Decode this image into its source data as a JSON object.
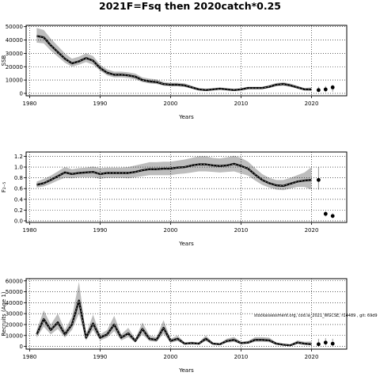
{
  "title": "2021F=Fsq then 2020catch*0.25",
  "credit": "stockassessment.org, cod.ia_2021_WGCSE, r14489 , git: 69d9",
  "chart_data": [
    {
      "type": "line",
      "ylabel": "SSB",
      "xlabel": "Years",
      "xlim": [
        1979.5,
        2025.0
      ],
      "ylim": [
        -1800,
        51000
      ],
      "xticks": [
        1980,
        1990,
        2000,
        2010,
        2020
      ],
      "yticks": [
        0,
        10000,
        20000,
        30000,
        40000,
        50000
      ],
      "ytick_labels": [
        "0",
        "10000",
        "20000",
        "30000",
        "40000",
        "50000"
      ],
      "grid": true,
      "x": [
        1981,
        1982,
        1983,
        1984,
        1985,
        1986,
        1987,
        1988,
        1989,
        1990,
        1991,
        1992,
        1993,
        1994,
        1995,
        1996,
        1997,
        1998,
        1999,
        2000,
        2001,
        2002,
        2003,
        2004,
        2005,
        2006,
        2007,
        2008,
        2009,
        2010,
        2011,
        2012,
        2013,
        2014,
        2015,
        2016,
        2017,
        2018,
        2019,
        2020
      ],
      "estimate": [
        43000,
        42000,
        36000,
        31000,
        26000,
        22500,
        24000,
        26500,
        24500,
        19000,
        15500,
        14000,
        14000,
        13500,
        12500,
        10000,
        9000,
        8500,
        7000,
        6500,
        6500,
        6000,
        4500,
        3000,
        2500,
        3000,
        3500,
        3000,
        2500,
        3000,
        4000,
        4000,
        4000,
        5000,
        6500,
        7000,
        6000,
        4500,
        3000,
        3000
      ],
      "lower": [
        38000,
        37500,
        32000,
        27500,
        23000,
        20000,
        21500,
        23500,
        21500,
        17000,
        13500,
        12000,
        12000,
        11500,
        10500,
        8500,
        7500,
        7000,
        5800,
        5300,
        5300,
        4800,
        3500,
        2200,
        1800,
        2200,
        2700,
        2300,
        1900,
        2300,
        3100,
        3100,
        3200,
        4000,
        5400,
        5800,
        4900,
        3500,
        2200,
        1800
      ],
      "upper": [
        49000,
        47500,
        41000,
        35500,
        30000,
        26000,
        27500,
        30000,
        28000,
        21500,
        18000,
        16300,
        16300,
        15800,
        14800,
        12000,
        11000,
        10500,
        8600,
        8000,
        8000,
        7500,
        5800,
        4000,
        3400,
        3900,
        4500,
        3900,
        3300,
        3800,
        5000,
        5000,
        5000,
        6200,
        7800,
        8400,
        7300,
        5700,
        4000,
        4500
      ],
      "forecast_x": [
        2021,
        2022,
        2023
      ],
      "forecast": [
        2500,
        3000,
        4500
      ],
      "forecast_lower": [
        1200,
        1000,
        1300
      ],
      "forecast_upper": [
        5000,
        5500,
        6500
      ]
    },
    {
      "type": "line",
      "ylabel": "F₂₋₅",
      "xlabel": "Years",
      "xlim": [
        1979.5,
        2025.0
      ],
      "ylim": [
        -0.03,
        1.28
      ],
      "xticks": [
        1980,
        1990,
        2000,
        2010,
        2020
      ],
      "yticks": [
        0.0,
        0.2,
        0.4,
        0.6,
        0.8,
        1.0,
        1.2
      ],
      "ytick_labels": [
        "0.0",
        "0.2",
        "0.4",
        "0.6",
        "0.8",
        "1.0",
        "1.2"
      ],
      "grid": true,
      "x": [
        1981,
        1982,
        1983,
        1984,
        1985,
        1986,
        1987,
        1988,
        1989,
        1990,
        1991,
        1992,
        1993,
        1994,
        1995,
        1996,
        1997,
        1998,
        1999,
        2000,
        2001,
        2002,
        2003,
        2004,
        2005,
        2006,
        2007,
        2008,
        2009,
        2010,
        2011,
        2012,
        2013,
        2014,
        2015,
        2016,
        2017,
        2018,
        2019,
        2020
      ],
      "estimate": [
        0.67,
        0.7,
        0.76,
        0.83,
        0.9,
        0.87,
        0.89,
        0.9,
        0.91,
        0.87,
        0.89,
        0.89,
        0.89,
        0.89,
        0.91,
        0.94,
        0.96,
        0.96,
        0.97,
        0.97,
        0.99,
        1.0,
        1.03,
        1.05,
        1.05,
        1.03,
        1.02,
        1.03,
        1.06,
        1.02,
        0.97,
        0.86,
        0.76,
        0.7,
        0.66,
        0.65,
        0.69,
        0.73,
        0.75,
        0.76
      ],
      "lower": [
        0.62,
        0.64,
        0.69,
        0.75,
        0.8,
        0.79,
        0.81,
        0.81,
        0.81,
        0.78,
        0.8,
        0.8,
        0.8,
        0.79,
        0.81,
        0.83,
        0.85,
        0.85,
        0.85,
        0.85,
        0.87,
        0.88,
        0.9,
        0.92,
        0.92,
        0.91,
        0.9,
        0.91,
        0.92,
        0.88,
        0.84,
        0.75,
        0.67,
        0.62,
        0.58,
        0.57,
        0.6,
        0.63,
        0.63,
        0.58
      ],
      "upper": [
        0.73,
        0.78,
        0.84,
        0.92,
        1.0,
        0.96,
        0.98,
        0.99,
        1.01,
        0.98,
        0.99,
        0.99,
        0.99,
        1.0,
        1.03,
        1.06,
        1.09,
        1.09,
        1.1,
        1.1,
        1.12,
        1.14,
        1.17,
        1.2,
        1.2,
        1.17,
        1.16,
        1.18,
        1.21,
        1.17,
        1.1,
        0.98,
        0.87,
        0.8,
        0.76,
        0.76,
        0.8,
        0.85,
        0.9,
        1.0
      ],
      "forecast_x": [
        2021,
        2022,
        2023
      ],
      "forecast": [
        0.76,
        0.13,
        0.09
      ],
      "forecast_lower": [
        0.58,
        0.08,
        0.05
      ],
      "forecast_upper": [
        1.0,
        0.18,
        0.14
      ]
    },
    {
      "type": "line",
      "ylabel": "Recruits (Age 1)",
      "xlabel": "Years",
      "xlim": [
        1979.5,
        2025.0
      ],
      "ylim": [
        -2500,
        62000
      ],
      "xticks": [
        1980,
        1990,
        2000,
        2010,
        2020
      ],
      "yticks": [
        0,
        10000,
        20000,
        30000,
        40000,
        50000,
        60000
      ],
      "ytick_labels": [
        "0",
        "10000",
        "20000",
        "30000",
        "40000",
        "50000",
        "60000"
      ],
      "grid": true,
      "x": [
        1981,
        1982,
        1983,
        1984,
        1985,
        1986,
        1987,
        1988,
        1989,
        1990,
        1991,
        1992,
        1993,
        1994,
        1995,
        1996,
        1997,
        1998,
        1999,
        2000,
        2001,
        2002,
        2003,
        2004,
        2005,
        2006,
        2007,
        2008,
        2009,
        2010,
        2011,
        2012,
        2013,
        2014,
        2015,
        2016,
        2017,
        2018,
        2019,
        2020
      ],
      "estimate": [
        11000,
        25000,
        15000,
        22000,
        11000,
        20000,
        42000,
        8000,
        21000,
        8000,
        11000,
        20000,
        8000,
        12000,
        5000,
        16000,
        7000,
        6000,
        17000,
        5000,
        7000,
        2500,
        3000,
        2500,
        7000,
        2500,
        2000,
        5000,
        6000,
        3000,
        3500,
        6000,
        6000,
        5500,
        2500,
        1500,
        1000,
        3500,
        2500,
        2000
      ],
      "lower": [
        8000,
        18000,
        11000,
        16000,
        8000,
        15000,
        30000,
        5500,
        15000,
        5500,
        8000,
        14000,
        5500,
        8500,
        3500,
        11000,
        4800,
        4100,
        11500,
        3400,
        4800,
        1700,
        2000,
        1700,
        4800,
        1700,
        1300,
        3400,
        4100,
        2000,
        2400,
        4200,
        4200,
        3800,
        1600,
        900,
        600,
        2200,
        1400,
        900
      ],
      "upper": [
        15000,
        33000,
        20000,
        30000,
        15000,
        27000,
        59000,
        11000,
        29000,
        11000,
        15000,
        28000,
        11000,
        17000,
        7000,
        22000,
        10000,
        8500,
        24000,
        7000,
        10000,
        3600,
        4300,
        3600,
        10000,
        3600,
        2900,
        7200,
        8600,
        4300,
        5000,
        8500,
        8500,
        8000,
        3700,
        2400,
        1700,
        5500,
        4200,
        4500
      ],
      "forecast_x": [
        2021,
        2022,
        2023
      ],
      "forecast": [
        2000,
        3500,
        2500
      ],
      "forecast_lower": [
        500,
        800,
        500
      ],
      "forecast_upper": [
        7000,
        7500,
        7000
      ]
    }
  ]
}
